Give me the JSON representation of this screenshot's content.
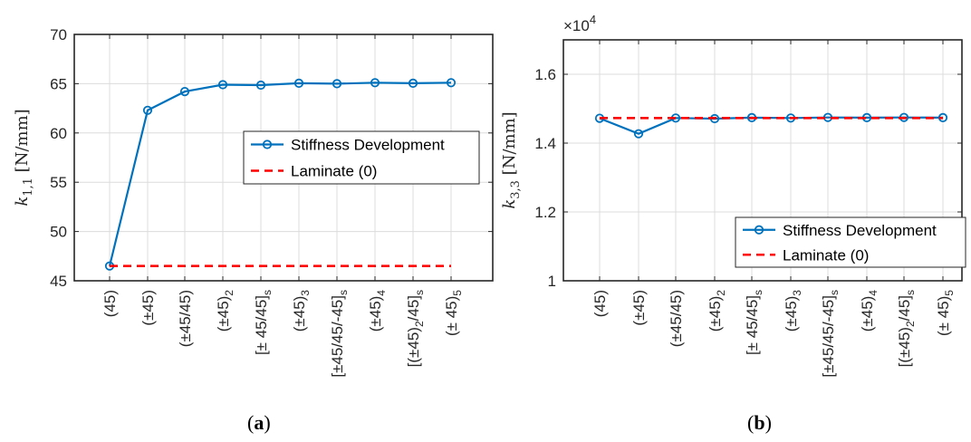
{
  "figure": {
    "panels": [
      {
        "label_open": "(",
        "label_letter": "a",
        "label_close": ")"
      },
      {
        "label_open": "(",
        "label_letter": "b",
        "label_close": ")"
      }
    ]
  },
  "chart_data": [
    {
      "type": "line",
      "categories": [
        {
          "text": "(45)"
        },
        {
          "text": "(±45)"
        },
        {
          "text": "(±45/45)"
        },
        {
          "text": "(±45)",
          "sub": "2"
        },
        {
          "text": "[± 45/45]",
          "sub": "s"
        },
        {
          "text": "(±45)",
          "sub": "3"
        },
        {
          "text": "[±45/45/-45]",
          "sub": "s"
        },
        {
          "text": "(±45)",
          "sub": "4"
        },
        {
          "text": "[(±45)",
          "sub": "2",
          "tail": "/45]",
          "sub2": "s"
        },
        {
          "text": "(± 45)",
          "sub": "5"
        }
      ],
      "series": [
        {
          "name": "Stiffness Development",
          "style": "solid-circle",
          "color": "#0072BD",
          "values": [
            46.5,
            62.3,
            64.2,
            64.9,
            64.85,
            65.05,
            65.0,
            65.1,
            65.05,
            65.1
          ]
        },
        {
          "name": "Laminate (0)",
          "style": "dashed",
          "color": "#FF0000",
          "values": [
            46.5,
            46.5,
            46.5,
            46.5,
            46.5,
            46.5,
            46.5,
            46.5,
            46.5,
            46.5
          ]
        }
      ],
      "ylabel_main": "k",
      "ylabel_sub": "1,1",
      "ylabel_unit": "[N/mm]",
      "ylim": [
        45,
        70
      ],
      "yticks": [
        "45",
        "50",
        "55",
        "60",
        "65",
        "70"
      ],
      "grid": true,
      "legend_position": "middle-right"
    },
    {
      "type": "line",
      "categories": [
        {
          "text": "(45)"
        },
        {
          "text": "(±45)"
        },
        {
          "text": "(±45/45)"
        },
        {
          "text": "(±45)",
          "sub": "2"
        },
        {
          "text": "[± 45/45]",
          "sub": "s"
        },
        {
          "text": "(±45)",
          "sub": "3"
        },
        {
          "text": "[±45/45/-45]",
          "sub": "s"
        },
        {
          "text": "(±45)",
          "sub": "4"
        },
        {
          "text": "[(±45)",
          "sub": "2",
          "tail": "/45]",
          "sub2": "s"
        },
        {
          "text": "(± 45)",
          "sub": "5"
        }
      ],
      "series": [
        {
          "name": "Stiffness Development",
          "style": "solid-circle",
          "color": "#0072BD",
          "values": [
            14720,
            14270,
            14730,
            14710,
            14740,
            14730,
            14745,
            14740,
            14745,
            14740
          ]
        },
        {
          "name": "Laminate (0)",
          "style": "dashed",
          "color": "#FF0000",
          "values": [
            14730,
            14730,
            14730,
            14730,
            14730,
            14730,
            14730,
            14730,
            14730,
            14730
          ]
        }
      ],
      "ylabel_main": "k",
      "ylabel_sub": "3,3",
      "ylabel_unit": "[N/mm]",
      "ylim": [
        10000,
        17000
      ],
      "yticks": [
        "1",
        "1.2",
        "1.4",
        "1.6"
      ],
      "ytick_values": [
        10000,
        12000,
        14000,
        16000
      ],
      "exponent_prefix": "×10",
      "exponent_power": "4",
      "grid": true,
      "legend_position": "bottom-right"
    }
  ]
}
